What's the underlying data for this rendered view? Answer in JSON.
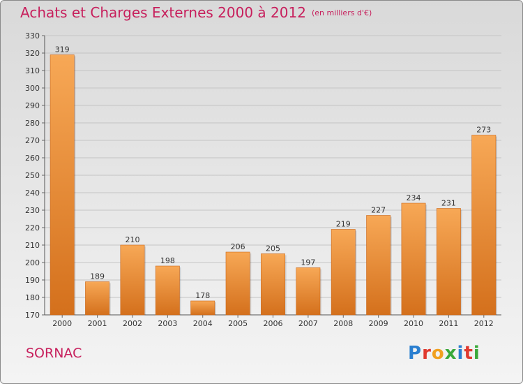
{
  "header": {
    "title": "Achats et Charges Externes 2000 à 2012",
    "subtitle": "(en milliers d'€)"
  },
  "footer": {
    "commune": "SORNAC",
    "logo_letters": [
      "P",
      "r",
      "o",
      "x",
      "i",
      "t",
      "i"
    ],
    "logo_colors": [
      "#2a7fd0",
      "#e03a2f",
      "#f0a020",
      "#3aa93a",
      "#2a7fd0",
      "#e03a2f",
      "#3aa93a"
    ]
  },
  "chart_data": {
    "type": "bar",
    "title": "Achats et Charges Externes 2000 à 2012",
    "subtitle": "(en milliers d'€)",
    "categories": [
      "2000",
      "2001",
      "2002",
      "2003",
      "2004",
      "2005",
      "2006",
      "2007",
      "2008",
      "2009",
      "2010",
      "2011",
      "2012"
    ],
    "values": [
      319,
      189,
      210,
      198,
      178,
      206,
      205,
      197,
      219,
      227,
      234,
      231,
      273
    ],
    "ylim": [
      170,
      330
    ],
    "yticks": [
      170,
      180,
      190,
      200,
      210,
      220,
      230,
      240,
      250,
      260,
      270,
      280,
      290,
      300,
      310,
      320,
      330
    ],
    "grid": true,
    "bar_color_top": "#f7a856",
    "bar_color_bottom": "#d4701c"
  }
}
